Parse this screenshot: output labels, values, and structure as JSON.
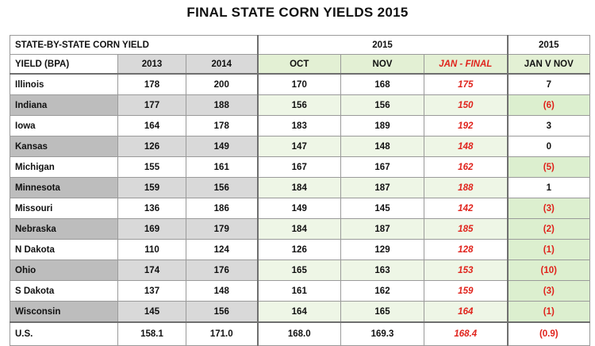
{
  "title": "FINAL STATE CORN YIELDS 2015",
  "header": {
    "section_label": "STATE-BY-STATE CORN YIELD",
    "group_2015": "2015",
    "group_2015b": "2015",
    "col_state": "YIELD (BPA)",
    "col_2013": "2013",
    "col_2014": "2014",
    "col_oct": "OCT",
    "col_nov": "NOV",
    "col_jan": "JAN - FINAL",
    "col_diff": "JAN V NOV"
  },
  "rows": [
    {
      "state": "Illinois",
      "y2013": "178",
      "y2014": "200",
      "oct": "170",
      "nov": "168",
      "jan": "175",
      "diff": "7"
    },
    {
      "state": "Indiana",
      "y2013": "177",
      "y2014": "188",
      "oct": "156",
      "nov": "156",
      "jan": "150",
      "diff": "(6)"
    },
    {
      "state": "Iowa",
      "y2013": "164",
      "y2014": "178",
      "oct": "183",
      "nov": "189",
      "jan": "192",
      "diff": "3"
    },
    {
      "state": "Kansas",
      "y2013": "126",
      "y2014": "149",
      "oct": "147",
      "nov": "148",
      "jan": "148",
      "diff": "0"
    },
    {
      "state": "Michigan",
      "y2013": "155",
      "y2014": "161",
      "oct": "167",
      "nov": "167",
      "jan": "162",
      "diff": "(5)"
    },
    {
      "state": "Minnesota",
      "y2013": "159",
      "y2014": "156",
      "oct": "184",
      "nov": "187",
      "jan": "188",
      "diff": "1"
    },
    {
      "state": "Missouri",
      "y2013": "136",
      "y2014": "186",
      "oct": "149",
      "nov": "145",
      "jan": "142",
      "diff": "(3)"
    },
    {
      "state": "Nebraska",
      "y2013": "169",
      "y2014": "179",
      "oct": "184",
      "nov": "187",
      "jan": "185",
      "diff": "(2)"
    },
    {
      "state": "N Dakota",
      "y2013": "110",
      "y2014": "124",
      "oct": "126",
      "nov": "129",
      "jan": "128",
      "diff": "(1)"
    },
    {
      "state": "Ohio",
      "y2013": "174",
      "y2014": "176",
      "oct": "165",
      "nov": "163",
      "jan": "153",
      "diff": "(10)"
    },
    {
      "state": "S Dakota",
      "y2013": "137",
      "y2014": "148",
      "oct": "161",
      "nov": "162",
      "jan": "159",
      "diff": "(3)"
    },
    {
      "state": "Wisconsin",
      "y2013": "145",
      "y2014": "156",
      "oct": "164",
      "nov": "165",
      "jan": "164",
      "diff": "(1)"
    }
  ],
  "total": {
    "state": "U.S.",
    "y2013": "158.1",
    "y2014": "171.0",
    "oct": "168.0",
    "nov": "169.3",
    "jan": "168.4",
    "diff": "(0.9)"
  },
  "colors": {
    "jan_text": "#e0221b",
    "negative_text": "#e0221b",
    "green_fill": "#e3f0d4",
    "grey_fill": "#d9d9d9"
  }
}
